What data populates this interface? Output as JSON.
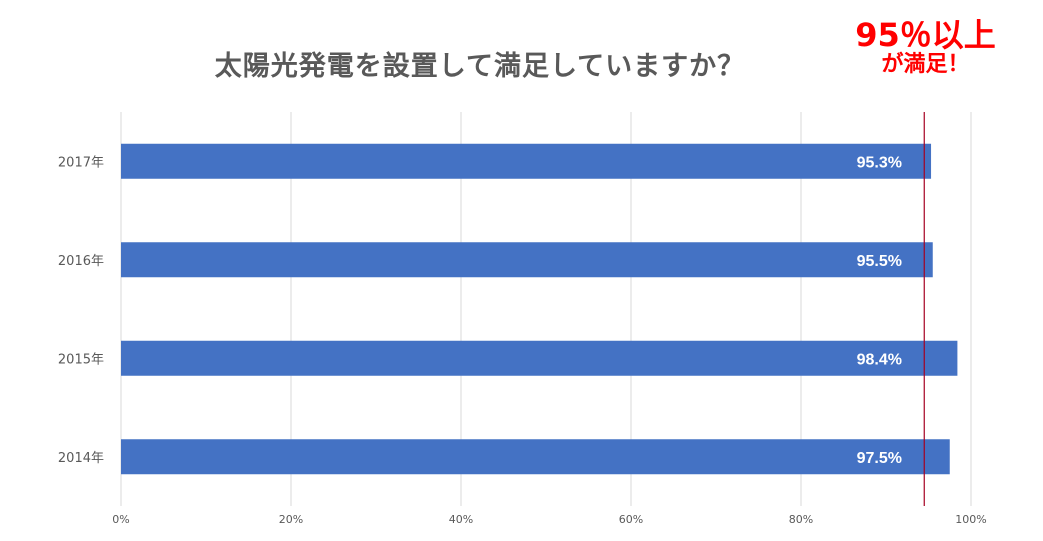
{
  "title": "太陽光発電を設置して満足していますか？",
  "callout": {
    "line1": "95％以上",
    "line2": "が満足！"
  },
  "colors": {
    "bar": "#4472c4",
    "threshold": "#a50021",
    "grid": "#d9d9d9",
    "callout": "#ff0000"
  },
  "chart_data": {
    "type": "bar",
    "orientation": "horizontal",
    "title": "太陽光発電を設置して満足していますか？",
    "categories": [
      "2017年",
      "2016年",
      "2015年",
      "2014年"
    ],
    "values": [
      95.3,
      95.5,
      98.4,
      97.5
    ],
    "data_labels": [
      "95.3%",
      "95.5%",
      "98.4%",
      "97.5%"
    ],
    "xlim": [
      0,
      100
    ],
    "x_ticks": [
      0,
      20,
      40,
      60,
      80,
      100
    ],
    "x_tick_labels": [
      "0%",
      "20%",
      "40%",
      "60%",
      "80%",
      "100%"
    ],
    "reference_line": 94.5,
    "grid": true,
    "legend": "none"
  }
}
